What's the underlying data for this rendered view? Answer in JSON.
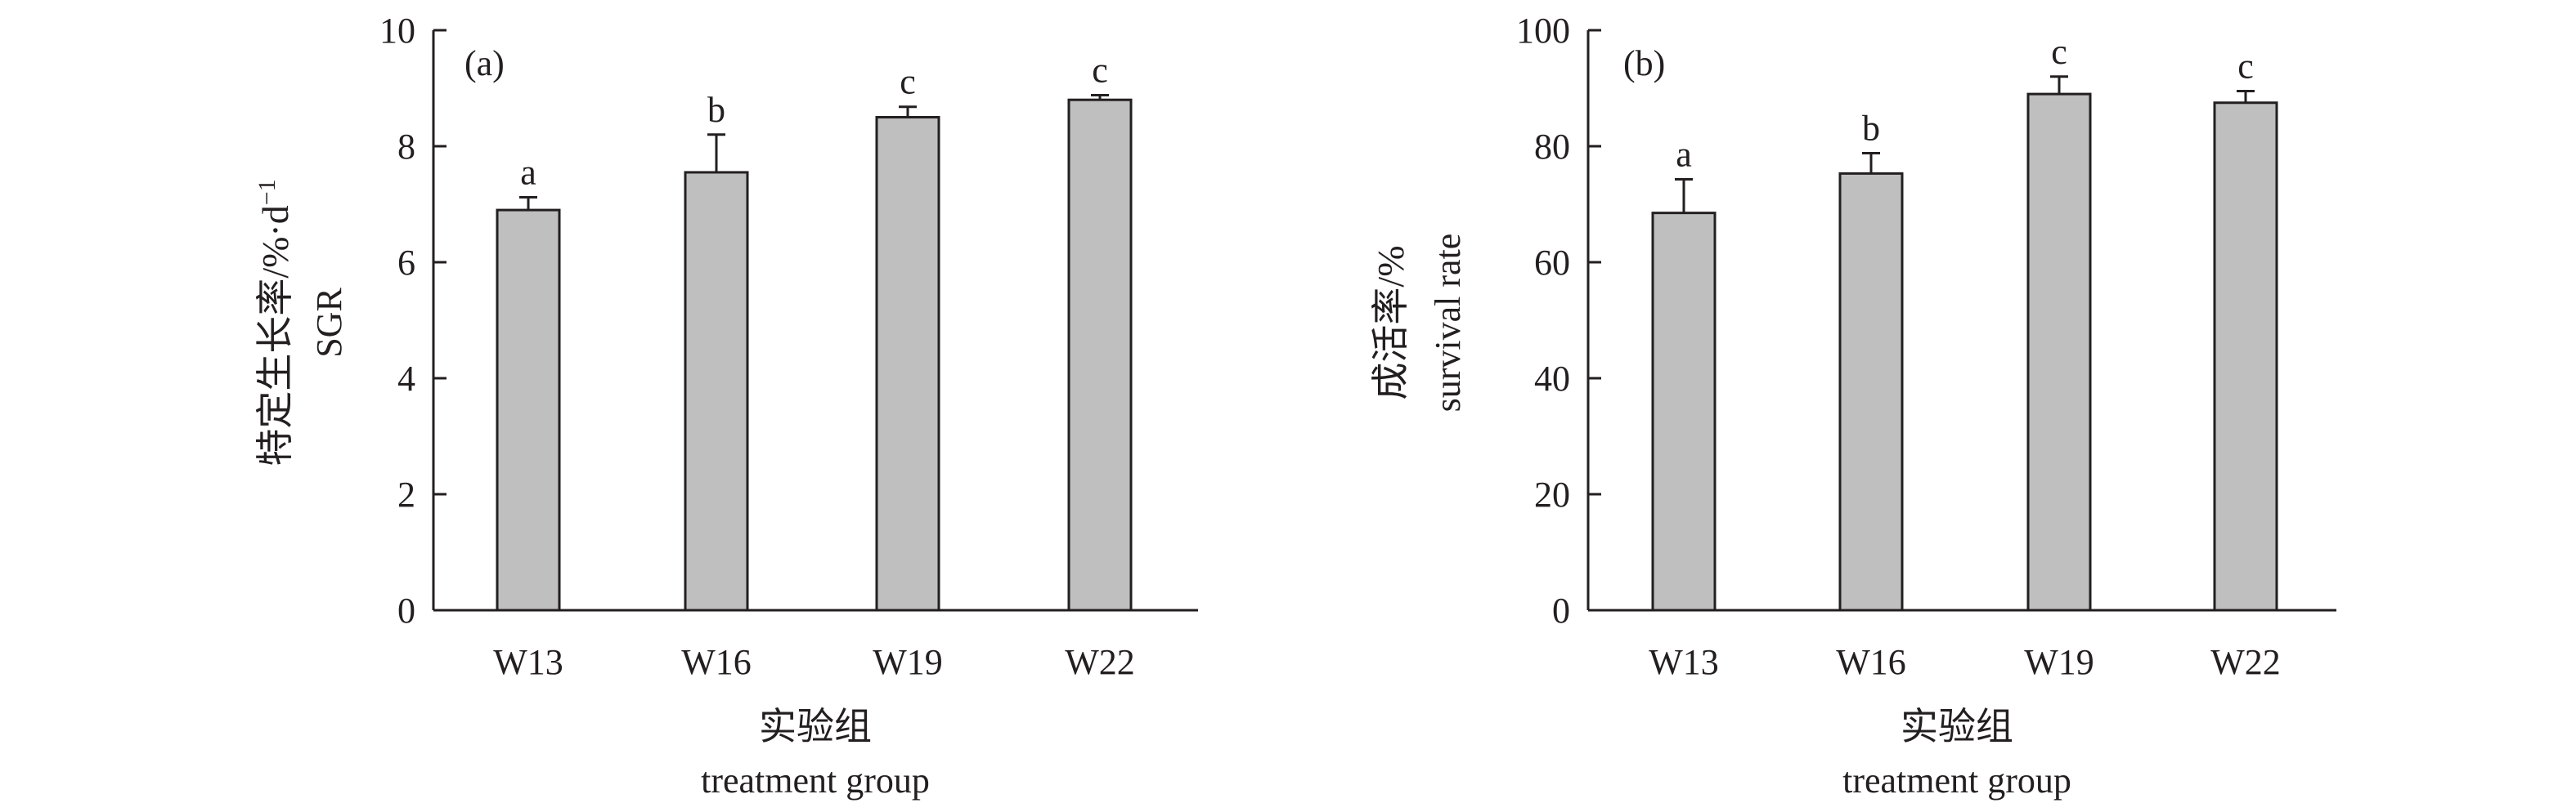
{
  "chart_data": [
    {
      "type": "bar",
      "panel_label": "(a)",
      "categories": [
        "W13",
        "W16",
        "W19",
        "W22"
      ],
      "values": [
        6.9,
        7.55,
        8.5,
        8.8
      ],
      "errors": [
        0.22,
        0.65,
        0.18,
        0.08
      ],
      "sig_letters": [
        "a",
        "b",
        "c",
        "c"
      ],
      "ylabel_cn": "特定生长率/%·d",
      "ylabel_sup": "−1",
      "ylabel_en": "SGR",
      "xlabel_cn": "实验组",
      "xlabel_en": "treatment group",
      "ylim": [
        0,
        10
      ],
      "yticks": [
        0,
        2,
        4,
        6,
        8,
        10
      ],
      "grid": false,
      "bar_color": "#bfbfbf"
    },
    {
      "type": "bar",
      "panel_label": "(b)",
      "categories": [
        "W13",
        "W16",
        "W19",
        "W22"
      ],
      "values": [
        68.5,
        75.3,
        89.0,
        87.5
      ],
      "errors": [
        5.8,
        3.5,
        3.0,
        2.0
      ],
      "sig_letters": [
        "a",
        "b",
        "c",
        "c"
      ],
      "ylabel_cn": "成活率/%",
      "ylabel_en": "survival rate",
      "xlabel_cn": "实验组",
      "xlabel_en": "treatment group",
      "ylim": [
        0,
        100
      ],
      "yticks": [
        0,
        20,
        40,
        60,
        80,
        100
      ],
      "grid": false,
      "bar_color": "#bfbfbf"
    }
  ]
}
